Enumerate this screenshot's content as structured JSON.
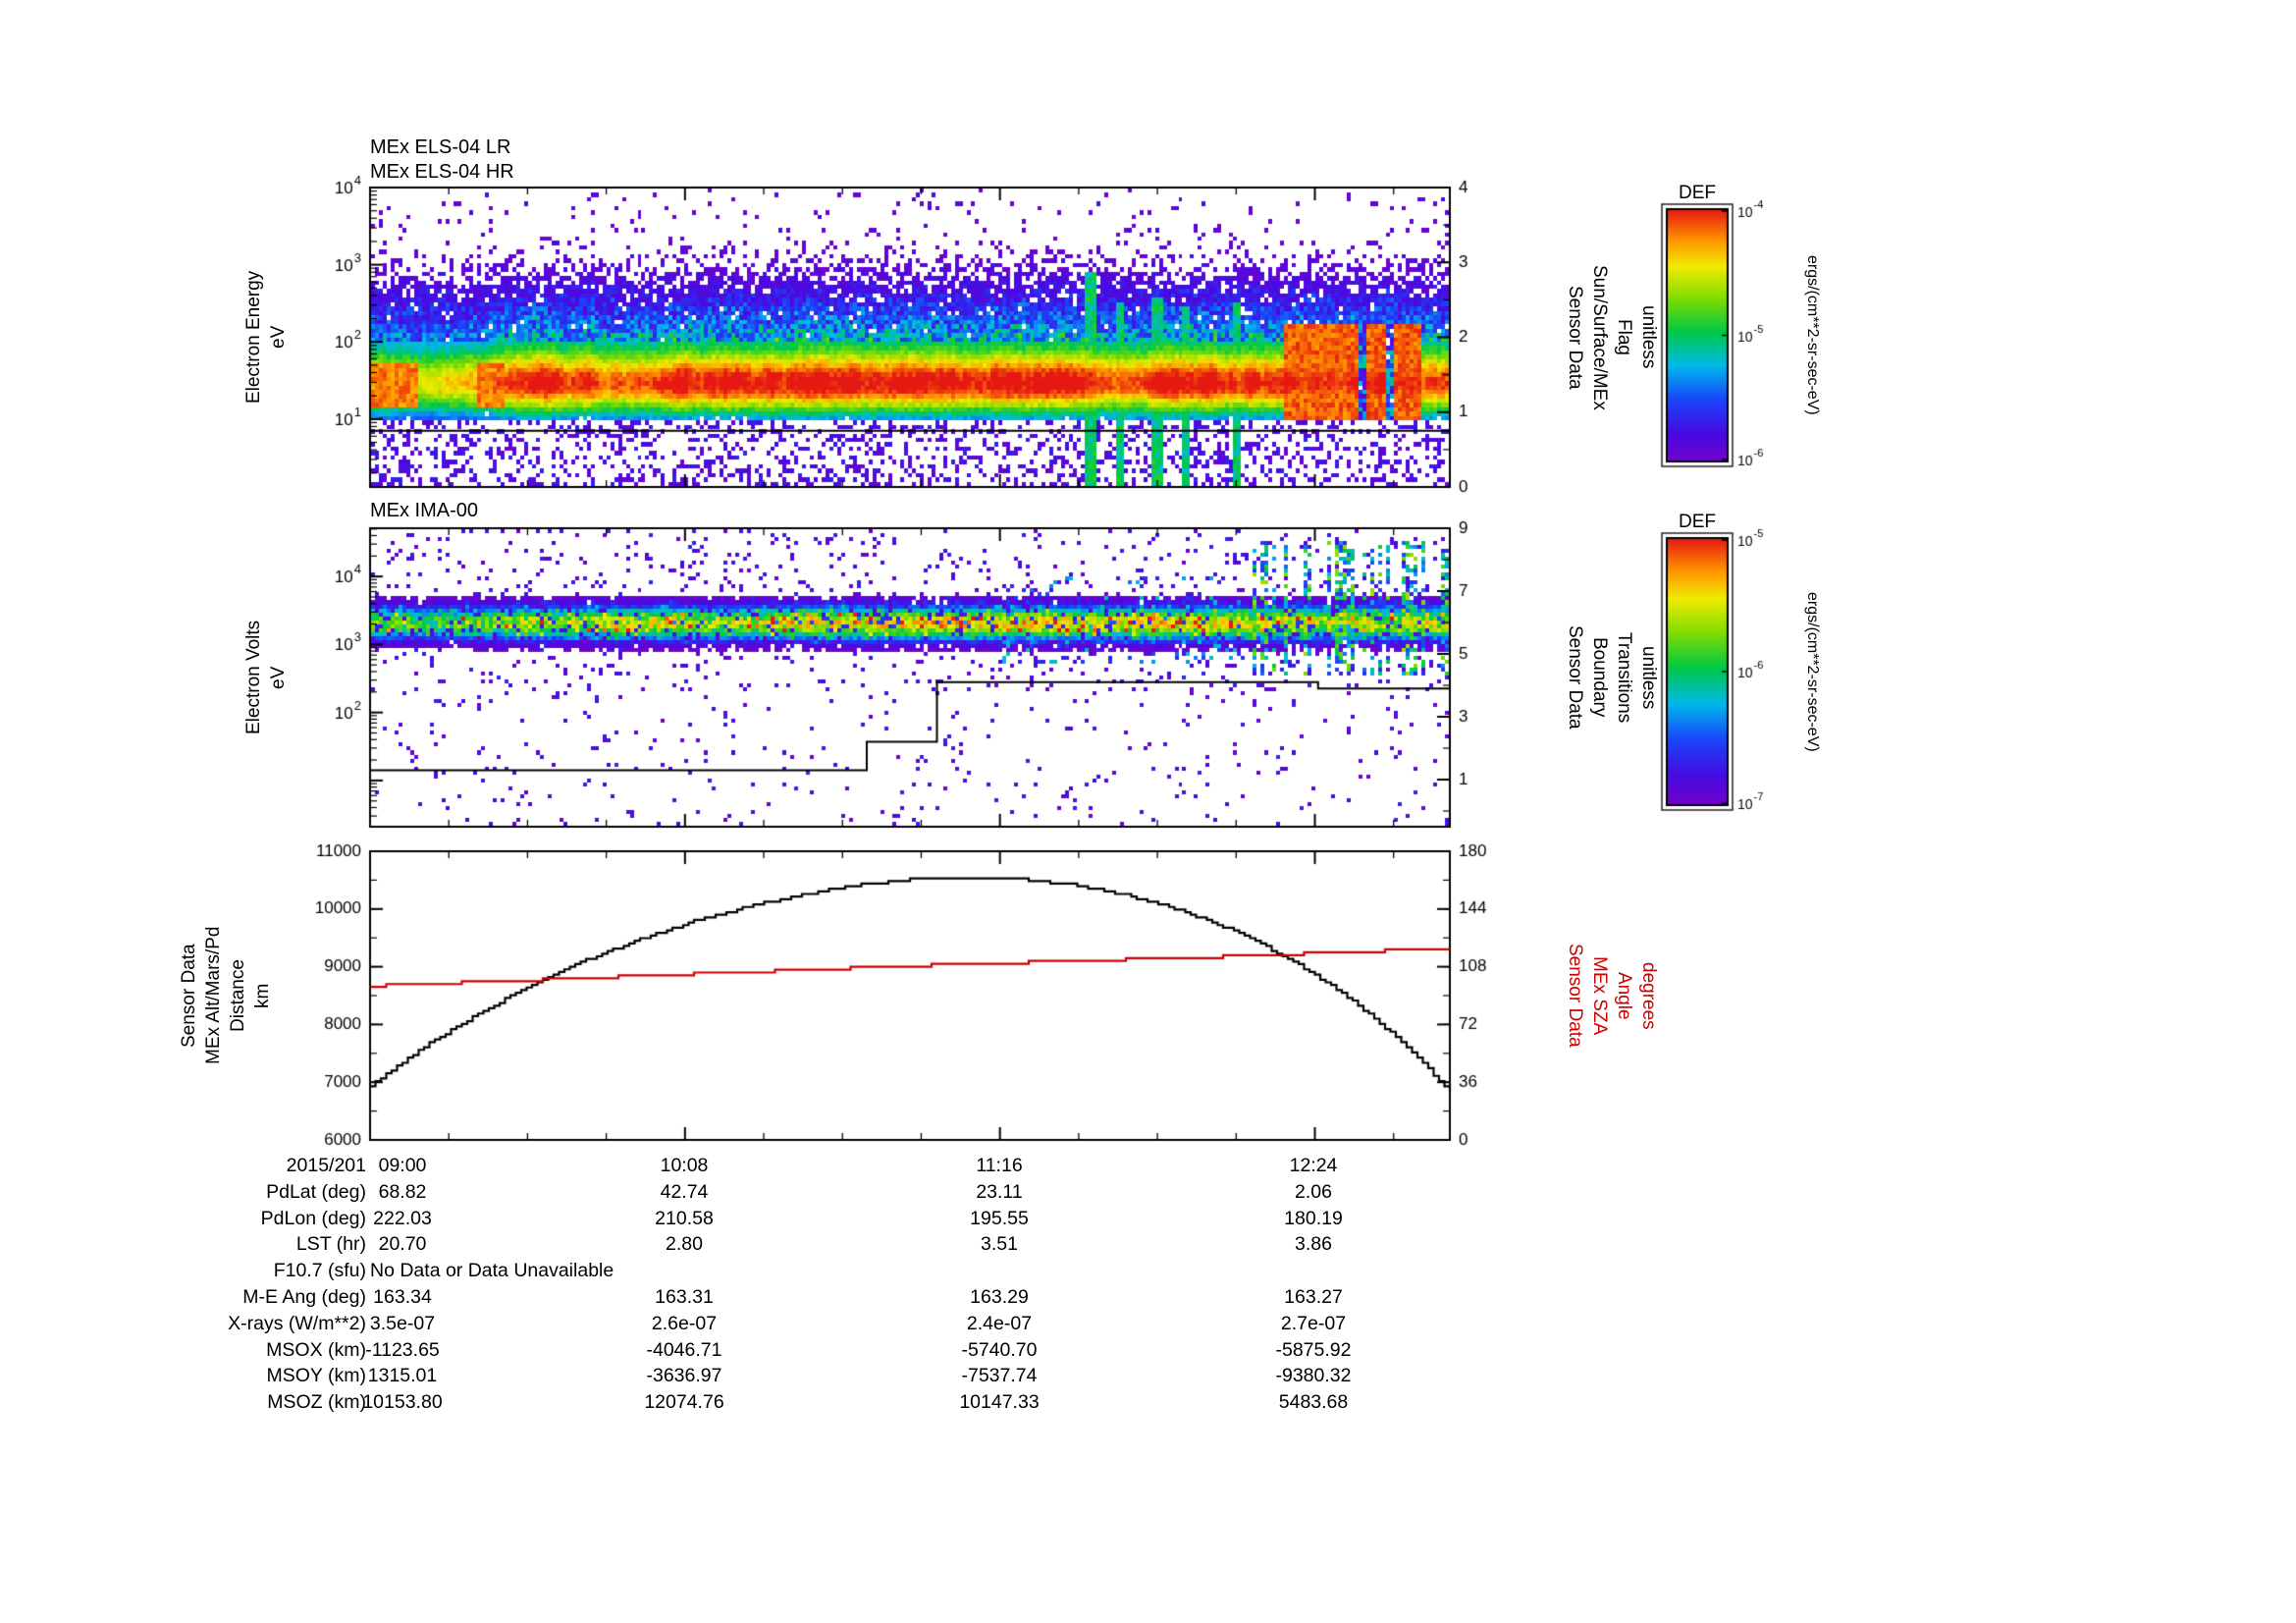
{
  "figure": {
    "background": "#ffffff",
    "text_color": "#000000",
    "accent_red": "#cc0000"
  },
  "panels": {
    "els": {
      "titles": [
        "MEx ELS-04 LR",
        "MEx ELS-04 HR"
      ],
      "ylabel_lines": [
        "Electron Energy",
        "eV"
      ],
      "right_label_lines": [
        "Sensor Data",
        "Sun/Surface/MEx",
        "Flag",
        "unitless"
      ]
    },
    "ima": {
      "title": "MEx IMA-00",
      "ylabel_lines": [
        "Electron Volts",
        "eV"
      ],
      "right_label_lines": [
        "Sensor Data",
        "Boundary",
        "Transitions",
        "unitless"
      ]
    },
    "ephemeris": {
      "left_label_lines": [
        "Sensor Data",
        "MEx Alt/Mars/Pd",
        "Distance",
        "km"
      ],
      "right_label_lines": [
        "Sensor Data",
        "MEx SZA",
        "Angle",
        "degrees"
      ]
    }
  },
  "colorbars": [
    {
      "title": "DEF",
      "tick_exponents": [
        -4,
        -5,
        -6
      ],
      "unit": "ergs/(cm**2-sr-sec-eV)"
    },
    {
      "title": "DEF",
      "tick_exponents": [
        -5,
        -6,
        -7
      ],
      "unit": "ergs/(cm**2-sr-sec-eV)"
    }
  ],
  "table": {
    "rows": [
      {
        "label": "2015/201",
        "values": [
          "09:00",
          "10:08",
          "11:16",
          "12:24"
        ]
      },
      {
        "label": "PdLat (deg)",
        "values": [
          "68.82",
          "42.74",
          "23.11",
          "2.06"
        ]
      },
      {
        "label": "PdLon (deg)",
        "values": [
          "222.03",
          "210.58",
          "195.55",
          "180.19"
        ]
      },
      {
        "label": "LST (hr)",
        "values": [
          "20.70",
          "2.80",
          "3.51",
          "3.86"
        ]
      },
      {
        "label": "F10.7 (sfu)",
        "values": [
          "No Data or Data Unavailable"
        ],
        "span": true
      },
      {
        "label": "M-E Ang (deg)",
        "values": [
          "163.34",
          "163.31",
          "163.29",
          "163.27"
        ]
      },
      {
        "label": "X-rays (W/m**2)",
        "values": [
          "3.5e-07",
          "2.6e-07",
          "2.4e-07",
          "2.7e-07"
        ]
      },
      {
        "label": "MSOX (km)",
        "values": [
          "-1123.65",
          "-4046.71",
          "-5740.70",
          "-5875.92"
        ]
      },
      {
        "label": "MSOY (km)",
        "values": [
          "1315.01",
          "-3636.97",
          "-7537.74",
          "-9380.32"
        ]
      },
      {
        "label": "MSOZ (km)",
        "values": [
          "10153.80",
          "12074.76",
          "10147.33",
          "5483.68"
        ]
      }
    ]
  },
  "chart_data": [
    {
      "type": "heatmap",
      "title": "MEx ELS-04 LR / MEx ELS-04 HR electron energy spectrogram",
      "ylabel": "Electron Energy (eV)",
      "yscale": "log",
      "ylim_log10": [
        0.12,
        4.0
      ],
      "ytick_exponents": [
        4,
        3,
        2,
        1
      ],
      "colormap": "rainbow",
      "right_axis": {
        "label": "Sensor Data Sun/Surface/MEx Flag (unitless)",
        "lim": [
          0,
          4
        ],
        "ticks": [
          4,
          3,
          2,
          1,
          0
        ]
      },
      "flag_line_value": 0.75,
      "bands": [
        {
          "name": "core-band",
          "center_log10_ev": 1.42,
          "sigma": 0.3,
          "intensity": 0.72
        },
        {
          "name": "halo-band",
          "center_log10_ev": 1.95,
          "sigma": 0.55,
          "intensity": 0.34
        }
      ],
      "features": [
        {
          "name": "red-interval-1",
          "t": [
            0.0,
            0.042
          ],
          "log10_ev": [
            1.12,
            1.72
          ],
          "intensity": 0.9
        },
        {
          "name": "red-interval-2",
          "t": [
            0.1,
            0.122
          ],
          "log10_ev": [
            1.12,
            1.72
          ],
          "intensity": 0.9
        },
        {
          "name": "red-blob",
          "t": [
            0.848,
            0.975
          ],
          "log10_ev": [
            0.95,
            2.25
          ],
          "intensity": 0.93
        },
        {
          "name": "gap-1",
          "t": [
            0.916,
            0.922
          ],
          "log10_ev": [
            0.95,
            2.25
          ],
          "intensity": -1
        },
        {
          "name": "gap-2",
          "t": [
            0.943,
            0.949
          ],
          "log10_ev": [
            0.95,
            2.25
          ],
          "intensity": -1
        }
      ],
      "spikes": [
        {
          "t": 0.667,
          "top_log10_ev": 2.9
        },
        {
          "t": 0.695,
          "top_log10_ev": 2.5
        },
        {
          "t": 0.729,
          "top_log10_ev": 2.6
        },
        {
          "t": 0.756,
          "top_log10_ev": 2.45
        },
        {
          "t": 0.803,
          "top_log10_ev": 2.5
        }
      ],
      "speckle": {
        "upper_range_log10": [
          2.05,
          3.45
        ],
        "upper_density": 0.2,
        "lower_range_log10": [
          0.12,
          0.95
        ],
        "lower_density": 0.33
      }
    },
    {
      "type": "heatmap",
      "title": "MEx IMA-00 spectrogram",
      "ylabel": "Electron Volts (eV)",
      "yscale": "log",
      "ylim_log10": [
        0.32,
        4.71
      ],
      "ytick_exponents": [
        4,
        3,
        2
      ],
      "colormap": "rainbow",
      "right_axis": {
        "label": "Sensor Data Boundary Transitions (unitless)",
        "lim": [
          -0.5,
          9
        ],
        "ticks": [
          9,
          7,
          5,
          3,
          1
        ]
      },
      "boundary_line_steps": [
        {
          "t": 0.0,
          "v": 1.3
        },
        {
          "t": 0.46,
          "v": 2.2
        },
        {
          "t": 0.525,
          "v": 4.1
        },
        {
          "t": 0.878,
          "v": 3.9
        },
        {
          "t": 1.0,
          "v": 3.9
        }
      ],
      "bands": [
        {
          "name": "core-band",
          "center_log10_ev": 3.32,
          "sigma": 0.17,
          "intensity": 0.62
        }
      ],
      "features": [
        {
          "name": "striped-region",
          "t": [
            0.82,
            1.0
          ],
          "log10_ev": [
            2.55,
            4.55
          ],
          "intensity": 0.55
        }
      ],
      "speckle": {
        "density": 0.05
      }
    },
    {
      "type": "line",
      "x_axis": {
        "date": "2015/201",
        "ticks": [
          {
            "t": 0.0,
            "label": "09:00"
          },
          {
            "t": 0.2917,
            "label": "10:08"
          },
          {
            "t": 0.5833,
            "label": "11:16"
          },
          {
            "t": 0.875,
            "label": "12:24"
          }
        ]
      },
      "left_axis": {
        "label": "Sensor Data MEx Alt/Mars/Pd Distance (km)",
        "lim": [
          6000,
          11000
        ],
        "ticks": [
          11000,
          10000,
          9000,
          8000,
          7000,
          6000
        ]
      },
      "right_axis": {
        "label": "Sensor Data MEx SZA Angle (degrees)",
        "lim": [
          0,
          180
        ],
        "ticks": [
          180,
          144,
          108,
          72,
          36,
          0
        ],
        "color": "#cc0000"
      },
      "series": [
        {
          "name": "altitude_km",
          "color": "#000000",
          "axis": "left",
          "x_frac": [
            0.0,
            0.05,
            0.1,
            0.15,
            0.2,
            0.25,
            0.3,
            0.35,
            0.4,
            0.45,
            0.5,
            0.55,
            0.6,
            0.65,
            0.7,
            0.75,
            0.8,
            0.85,
            0.9,
            0.95,
            1.0
          ],
          "values": [
            6950,
            7620,
            8190,
            8690,
            9120,
            9480,
            9790,
            10040,
            10250,
            10410,
            10510,
            10550,
            10520,
            10420,
            10240,
            9980,
            9620,
            9150,
            8550,
            7790,
            6850
          ]
        },
        {
          "name": "sza_deg",
          "color": "#cc0000",
          "axis": "right",
          "x_frac": [
            0.0,
            0.1,
            0.2,
            0.3,
            0.4,
            0.5,
            0.6,
            0.7,
            0.8,
            0.9,
            1.0
          ],
          "values": [
            96,
            98.5,
            101,
            103.5,
            106,
            108.5,
            110.5,
            112.5,
            114.5,
            117,
            119.5
          ]
        }
      ]
    }
  ]
}
